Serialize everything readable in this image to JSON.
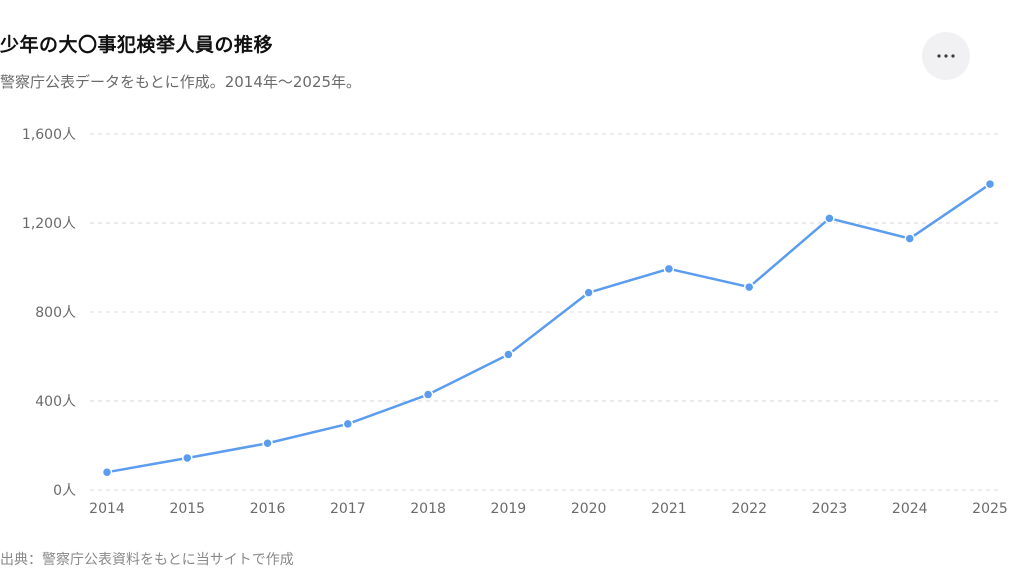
{
  "header": {
    "title": "少年の大〇事犯検挙人員の推移",
    "subtitle": "警察庁公表データをもとに作成。2014年〜2025年。"
  },
  "menu": {
    "icon": "more-horizontal-icon"
  },
  "footer": {
    "source": "出典：警察庁公表資料をもとに当サイトで作成"
  },
  "colors": {
    "line": "#5b9cef",
    "grid": "#d9d9d9",
    "axis_text": "#6b6b6b"
  },
  "chart_data": {
    "type": "line",
    "title": "少年の大〇事犯検挙人員の推移",
    "subtitle": "警察庁公表データをもとに作成。2014年〜2025年。",
    "x": [
      "2014",
      "2015",
      "2016",
      "2017",
      "2018",
      "2019",
      "2020",
      "2021",
      "2022",
      "2023",
      "2024",
      "2025"
    ],
    "series": [
      {
        "values": [
          80,
          144,
          210,
          297,
          429,
          609,
          887,
          994,
          912,
          1221,
          1130,
          1375
        ]
      }
    ],
    "ylim": [
      0,
      1600
    ],
    "y_ticks": [
      0,
      400,
      800,
      1200,
      1600
    ],
    "y_tick_labels": [
      "0人",
      "400人",
      "800人",
      "1,200人",
      "1,600人"
    ],
    "grid": true,
    "grid_style": "dashed-horizontal",
    "legend": "none"
  }
}
